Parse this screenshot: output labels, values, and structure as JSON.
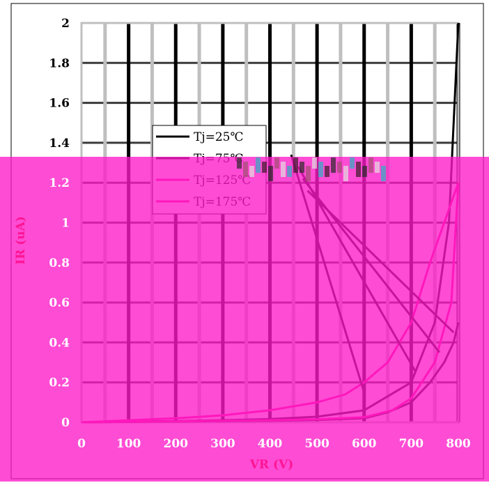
{
  "chart_data": {
    "type": "line",
    "title": "",
    "xlabel": "VR (V)",
    "ylabel": "IR (uA)",
    "xlim": [
      0,
      800
    ],
    "ylim": [
      0,
      2
    ],
    "x_ticks": [
      "0",
      "100",
      "200",
      "300",
      "400",
      "500",
      "600",
      "700",
      "800"
    ],
    "y_ticks": [
      "0",
      "0.2",
      "0.4",
      "0.6",
      "0.8",
      "1",
      "1.2",
      "1.4",
      "1.6",
      "1.8",
      "2"
    ],
    "grid": true,
    "legend_position": "upper-left",
    "series": [
      {
        "name": "Tj=25℃",
        "color": "#000000",
        "points": [
          [
            0,
            0
          ],
          [
            100,
            0.003
          ],
          [
            200,
            0.006
          ],
          [
            300,
            0.01
          ],
          [
            400,
            0.016
          ],
          [
            500,
            0.028
          ],
          [
            600,
            0.06
          ],
          [
            700,
            0.2
          ],
          [
            750,
            0.5
          ],
          [
            780,
            1.0
          ],
          [
            800,
            2.0
          ]
        ]
      },
      {
        "name": "Tj=75℃",
        "color": "#000000",
        "points": [
          [
            0,
            0
          ],
          [
            200,
            0.004
          ],
          [
            400,
            0.008
          ],
          [
            500,
            0.012
          ],
          [
            600,
            0.02
          ],
          [
            650,
            0.05
          ],
          [
            700,
            0.1
          ],
          [
            740,
            0.2
          ],
          [
            770,
            0.3
          ],
          [
            790,
            0.4
          ],
          [
            800,
            0.5
          ]
        ]
      },
      {
        "name": "Tj=125℃",
        "color": "#ff1493",
        "points": [
          [
            0,
            0
          ],
          [
            200,
            0.005
          ],
          [
            400,
            0.01
          ],
          [
            500,
            0.015
          ],
          [
            600,
            0.025
          ],
          [
            660,
            0.06
          ],
          [
            700,
            0.12
          ],
          [
            750,
            0.3
          ],
          [
            785,
            0.6
          ],
          [
            800,
            1.2
          ]
        ]
      },
      {
        "name": "Tj=175℃",
        "color": "#ff1493",
        "points": [
          [
            0,
            0
          ],
          [
            100,
            0.01
          ],
          [
            200,
            0.02
          ],
          [
            300,
            0.035
          ],
          [
            400,
            0.06
          ],
          [
            500,
            0.1
          ],
          [
            560,
            0.14
          ],
          [
            600,
            0.2
          ],
          [
            650,
            0.3
          ],
          [
            700,
            0.5
          ],
          [
            740,
            0.8
          ],
          [
            770,
            1.0
          ],
          [
            800,
            1.2
          ]
        ]
      }
    ],
    "leader_lines": [
      {
        "from": [
          445,
          1.34
        ],
        "to": [
          600,
          0.15
        ]
      },
      {
        "from": [
          460,
          1.28
        ],
        "to": [
          710,
          0.25
        ]
      },
      {
        "from": [
          470,
          1.22
        ],
        "to": [
          760,
          0.35
        ]
      },
      {
        "from": [
          480,
          1.16
        ],
        "to": [
          790,
          0.45
        ]
      }
    ],
    "colors": {
      "overlay": "#ff19c8",
      "grid_light": "#bfbfbf",
      "grid_dark": "#3a3a3a",
      "accent": "#ff1493"
    }
  }
}
